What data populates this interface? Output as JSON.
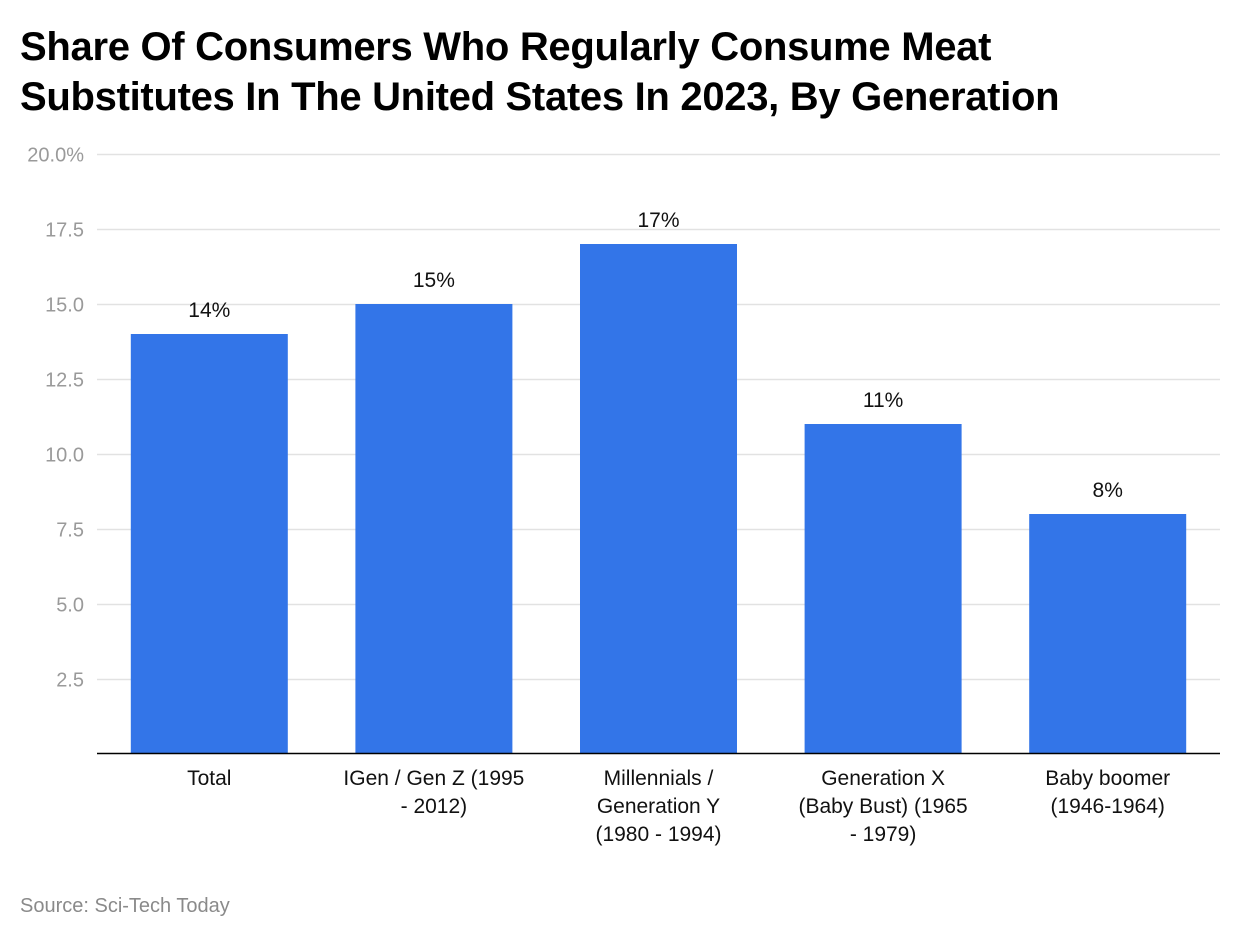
{
  "chart_data": {
    "type": "bar",
    "title": "Share Of Consumers Who Regularly Consume Meat Substitutes In The United States In 2023, By Generation",
    "categories": [
      [
        "Total"
      ],
      [
        "IGen / Gen Z (1995",
        "- 2012)"
      ],
      [
        "Millennials /",
        "Generation Y",
        "(1980 - 1994)"
      ],
      [
        "Generation X",
        "(Baby Bust) (1965",
        "- 1979)"
      ],
      [
        "Baby boomer",
        "(1946-1964)"
      ]
    ],
    "values": [
      14,
      15,
      17,
      11,
      8
    ],
    "data_labels": [
      "14%",
      "15%",
      "17%",
      "11%",
      "8%"
    ],
    "ylim": [
      0,
      20
    ],
    "yticks": [
      2.5,
      5.0,
      7.5,
      10.0,
      12.5,
      15.0,
      17.5,
      20.0
    ],
    "ytick_labels": [
      "2.5",
      "5.0",
      "7.5",
      "10.0",
      "12.5",
      "15.0",
      "17.5",
      "20.0%"
    ],
    "xlabel": "",
    "ylabel": "",
    "grid": true,
    "bar_color": "#3375e8"
  },
  "source": "Source: Sci-Tech Today"
}
